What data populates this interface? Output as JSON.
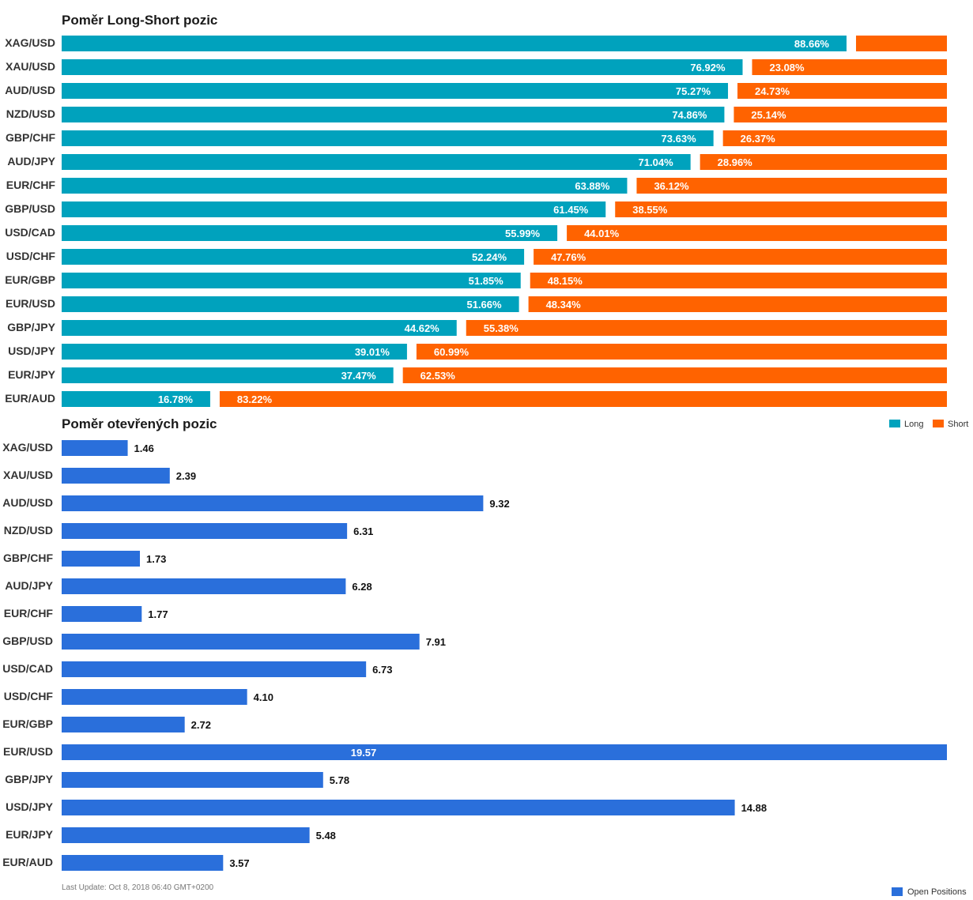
{
  "chart_data": [
    {
      "type": "bar",
      "orientation": "horizontal",
      "stacked": "percent",
      "title": "Poměr Long-Short pozic",
      "categories": [
        "XAG/USD",
        "XAU/USD",
        "AUD/USD",
        "NZD/USD",
        "GBP/CHF",
        "AUD/JPY",
        "EUR/CHF",
        "GBP/USD",
        "USD/CAD",
        "USD/CHF",
        "EUR/GBP",
        "EUR/USD",
        "GBP/JPY",
        "USD/JPY",
        "EUR/JPY",
        "EUR/AUD"
      ],
      "series": [
        {
          "name": "Long",
          "color": "#00a2bd",
          "values": [
            88.66,
            76.92,
            75.27,
            74.86,
            73.63,
            71.04,
            63.88,
            61.45,
            55.99,
            52.24,
            51.85,
            51.66,
            44.62,
            39.01,
            37.47,
            16.78
          ]
        },
        {
          "name": "Short",
          "color": "#ff6300",
          "values": [
            11.34,
            23.08,
            24.73,
            25.14,
            26.37,
            28.96,
            36.12,
            38.55,
            44.01,
            47.76,
            48.15,
            48.34,
            55.38,
            60.99,
            62.53,
            83.22
          ]
        }
      ],
      "short_label_shown": [
        false,
        true,
        true,
        true,
        true,
        true,
        true,
        true,
        true,
        true,
        true,
        true,
        true,
        true,
        true,
        true
      ],
      "legend_position": "top-right",
      "grid": false
    },
    {
      "type": "bar",
      "orientation": "horizontal",
      "title": "Poměr otevřených pozic",
      "categories": [
        "XAG/USD",
        "XAU/USD",
        "AUD/USD",
        "NZD/USD",
        "GBP/CHF",
        "AUD/JPY",
        "EUR/CHF",
        "GBP/USD",
        "USD/CAD",
        "USD/CHF",
        "EUR/GBP",
        "EUR/USD",
        "GBP/JPY",
        "USD/JPY",
        "EUR/JPY",
        "EUR/AUD"
      ],
      "series": [
        {
          "name": "Open Positions",
          "color": "#2a6fdb",
          "values": [
            1.46,
            2.39,
            9.32,
            6.31,
            1.73,
            6.28,
            1.77,
            7.91,
            6.73,
            4.1,
            2.72,
            19.57,
            5.78,
            14.88,
            5.48,
            3.57
          ]
        }
      ],
      "xlim": [
        0,
        19.57
      ],
      "legend_position": "bottom-right",
      "grid": false
    }
  ],
  "footer": "Last Update: Oct 8, 2018 06:40 GMT+0200"
}
